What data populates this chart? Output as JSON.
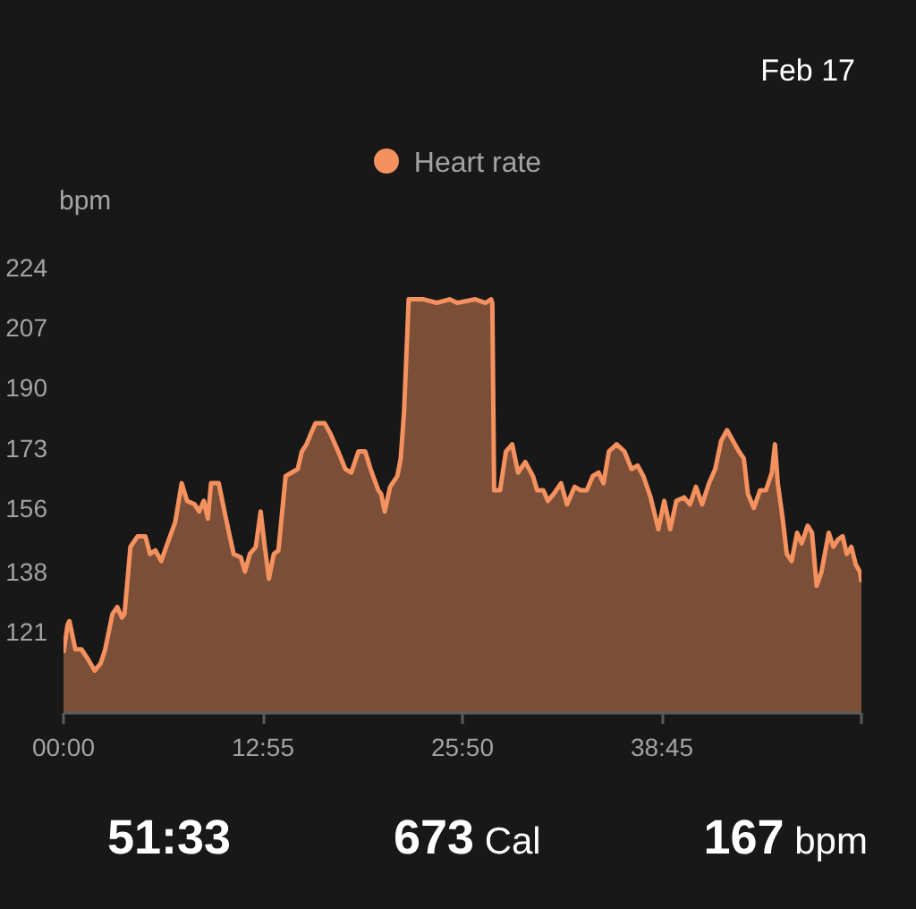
{
  "chart_data": {
    "type": "area",
    "annotations": [
      "Feb 17",
      "51:33",
      "673 Cal",
      "167 bpm"
    ],
    "ylabel": "bpm",
    "x": [
      0,
      16,
      23,
      46,
      70,
      97,
      121,
      144,
      162,
      190,
      209,
      227,
      237,
      260,
      288,
      318,
      336,
      357,
      380,
      399,
      434,
      459,
      480,
      510,
      527,
      545,
      561,
      573,
      603,
      631,
      661,
      689,
      705,
      724,
      747,
      766,
      782,
      798,
      817,
      835,
      863,
      886,
      910,
      926,
      944,
      961,
      979,
      1014,
      1037,
      1067,
      1095,
      1118,
      1146,
      1172,
      1193,
      1223,
      1234,
      1248,
      1269,
      1297,
      1310,
      1323,
      1341,
      1400,
      1450,
      1500,
      1530,
      1600,
      1640,
      1661,
      1666,
      1673,
      1696,
      1719,
      1743,
      1766,
      1794,
      1824,
      1840,
      1864,
      1882,
      1905,
      1933,
      1956,
      1986,
      2009,
      2033,
      2056,
      2079,
      2098,
      2119,
      2149,
      2179,
      2207,
      2230,
      2253,
      2281,
      2311,
      2334,
      2357,
      2381,
      2411,
      2434,
      2457,
      2481,
      2508,
      2532,
      2555,
      2578,
      2601,
      2624,
      2643,
      2659,
      2682,
      2706,
      2729,
      2752,
      2764,
      2775,
      2794,
      2810,
      2829,
      2850,
      2868,
      2891,
      2908,
      2926,
      2945,
      2973,
      2991,
      3008,
      3027,
      3043,
      3061,
      3078,
      3094,
      3100
    ],
    "series": [
      {
        "name": "Heart rate",
        "color": "#f4915e",
        "values": [
          115,
          123,
          124,
          116,
          116,
          113,
          110,
          112,
          116,
          126,
          128,
          125,
          126,
          145,
          148,
          148,
          143,
          144,
          141,
          145,
          152,
          163,
          158,
          157,
          155,
          158,
          153,
          163,
          163,
          153,
          143,
          142,
          138,
          143,
          145,
          155,
          145,
          136,
          143,
          144,
          165,
          166,
          167,
          172,
          174,
          177,
          180,
          180,
          177,
          172,
          167,
          166,
          172,
          172,
          167,
          161,
          160,
          155,
          162,
          165,
          170,
          183,
          215,
          215,
          214,
          215,
          214,
          215,
          214,
          215,
          214,
          161,
          161,
          172,
          174,
          166,
          169,
          165,
          161,
          161,
          158,
          160,
          163,
          157,
          162,
          161,
          161,
          165,
          166,
          163,
          172,
          174,
          172,
          167,
          168,
          165,
          159,
          150,
          158,
          150,
          158,
          159,
          157,
          162,
          157,
          163,
          167,
          175,
          178,
          175,
          172,
          170,
          160,
          156,
          161,
          161,
          166,
          174,
          163,
          153,
          143,
          141,
          149,
          146,
          151,
          149,
          134,
          138,
          149,
          145,
          147,
          148,
          143,
          145,
          140,
          138,
          135
        ]
      }
    ],
    "xlim": [
      0,
      3100
    ],
    "xticks": [
      {
        "value": 0,
        "label": "00:00"
      },
      {
        "value": 775,
        "label": "12:55"
      },
      {
        "value": 1550,
        "label": "25:50"
      },
      {
        "value": 2325,
        "label": "38:45"
      },
      {
        "value": 3100,
        "label": null
      }
    ],
    "ylim": [
      98,
      224
    ],
    "yticks": [
      121,
      138,
      156,
      173,
      190,
      207,
      224
    ],
    "legend": "top"
  }
}
